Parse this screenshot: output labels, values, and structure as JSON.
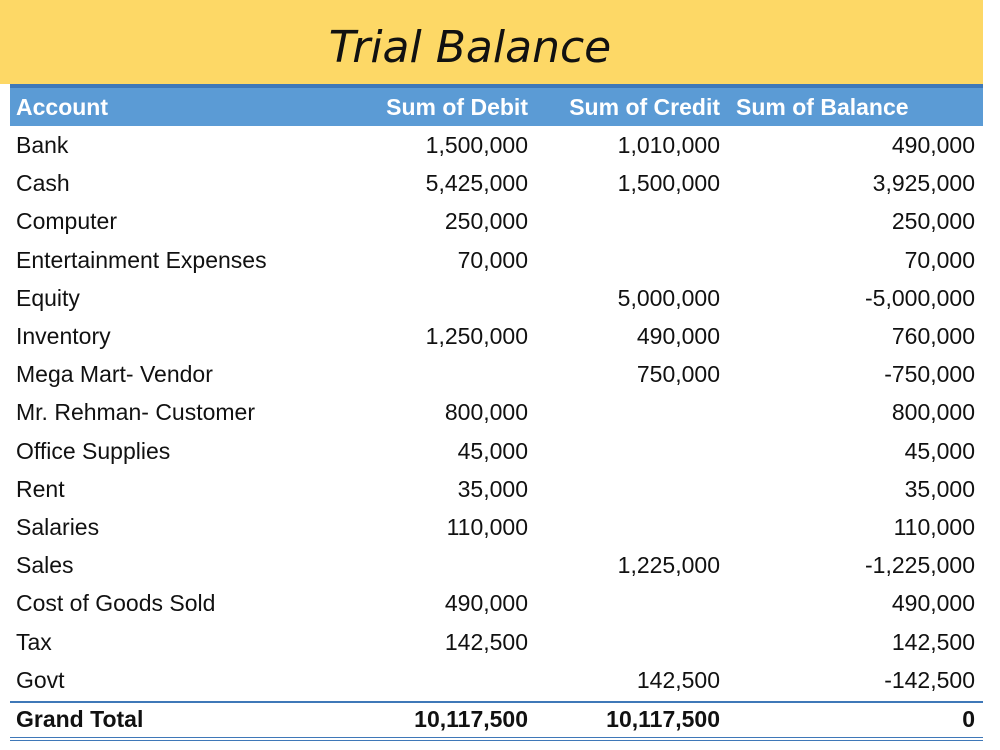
{
  "title": "Trial Balance",
  "columns": [
    "Account",
    "Sum of Debit",
    "Sum of Credit",
    "Sum of Balance"
  ],
  "rows": [
    {
      "account": "Bank",
      "debit": "1,500,000",
      "credit": "1,010,000",
      "balance": "490,000"
    },
    {
      "account": "Cash",
      "debit": "5,425,000",
      "credit": "1,500,000",
      "balance": "3,925,000"
    },
    {
      "account": "Computer",
      "debit": "250,000",
      "credit": "",
      "balance": "250,000"
    },
    {
      "account": "Entertainment Expenses",
      "debit": "70,000",
      "credit": "",
      "balance": "70,000"
    },
    {
      "account": "Equity",
      "debit": "",
      "credit": "5,000,000",
      "balance": "-5,000,000"
    },
    {
      "account": "Inventory",
      "debit": "1,250,000",
      "credit": "490,000",
      "balance": "760,000"
    },
    {
      "account": "Mega Mart- Vendor",
      "debit": "",
      "credit": "750,000",
      "balance": "-750,000"
    },
    {
      "account": "Mr. Rehman- Customer",
      "debit": "800,000",
      "credit": "",
      "balance": "800,000"
    },
    {
      "account": "Office Supplies",
      "debit": "45,000",
      "credit": "",
      "balance": "45,000"
    },
    {
      "account": "Rent",
      "debit": "35,000",
      "credit": "",
      "balance": "35,000"
    },
    {
      "account": "Salaries",
      "debit": "110,000",
      "credit": "",
      "balance": "110,000"
    },
    {
      "account": "Sales",
      "debit": "",
      "credit": "1,225,000",
      "balance": "-1,225,000"
    },
    {
      "account": "Cost of Goods Sold",
      "debit": "490,000",
      "credit": "",
      "balance": "490,000"
    },
    {
      "account": "Tax",
      "debit": "142,500",
      "credit": "",
      "balance": "142,500"
    },
    {
      "account": "Govt",
      "debit": "",
      "credit": "142,500",
      "balance": "-142,500"
    }
  ],
  "total": {
    "account": "Grand Total",
    "debit": "10,117,500",
    "credit": "10,117,500",
    "balance": "0"
  },
  "colors": {
    "title_band": "#fdd866",
    "header": "#5b9bd5",
    "rule": "#3f78b8"
  }
}
